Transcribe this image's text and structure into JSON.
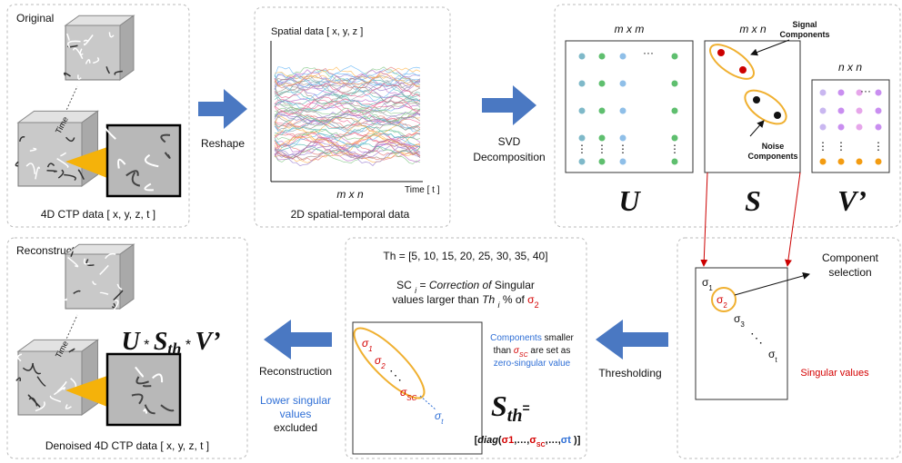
{
  "original": {
    "title": "Original",
    "time_label": "Time",
    "caption": "4D CTP data [ x, y, z, t ]"
  },
  "reshape_label": "Reshape",
  "spatial_temporal": {
    "y_axis_label": "Spatial data [ x, y, z ]",
    "x_axis_label": "Time [ t ]",
    "size": "m x n",
    "caption": "2D spatial-temporal data"
  },
  "svd_label": [
    "SVD",
    "Decomposition"
  ],
  "decomposition": {
    "u_size": "m x m",
    "s_size": "m x n",
    "v_size": "n x n",
    "signal_components": [
      "Signal",
      "Components"
    ],
    "noise_components": [
      "Noise",
      "Components"
    ],
    "u": "U",
    "s": "S",
    "v": "V’",
    "h_dots": "···",
    "v_dots": "⋮"
  },
  "selection": {
    "title": [
      "Component",
      "selection"
    ],
    "sigmas": [
      [
        "σ",
        "1"
      ],
      [
        "σ",
        "2"
      ],
      [
        "σ",
        "3"
      ],
      [
        "σ",
        "t"
      ]
    ],
    "dots": "⋱",
    "caption": "Singular values"
  },
  "thresholding_label": "Thresholding",
  "threshold": {
    "th_set": "Th = [5, 10, 15, 20, 25, 30, 35, 40]",
    "sc_line1": [
      "SC ",
      "i",
      " = ",
      "Correction of",
      " Singular"
    ],
    "sc_line2": [
      "values larger than ",
      "Th ",
      "i",
      " % of ",
      "σ",
      "2"
    ],
    "note": [
      "Components",
      " smaller",
      "than ",
      "σ",
      "SC",
      " are set as",
      "zero-singular value"
    ],
    "matrix_sigmas": [
      [
        "σ",
        "1"
      ],
      [
        "σ",
        "2"
      ],
      [
        "σ",
        "SC"
      ],
      [
        "σ",
        "t"
      ]
    ],
    "dots": "⋱",
    "s_th": [
      "S",
      "th",
      "="
    ],
    "diag": [
      "[",
      "diag",
      "(",
      "σ1",
      ",…,",
      "σ",
      "SC",
      ",…,",
      "σt",
      " )]"
    ]
  },
  "reconstruction_label": "Reconstruction",
  "excluded": [
    "Lower singular",
    "values",
    "excluded"
  ],
  "reconstructed": {
    "title": "Reconstructed",
    "time_label": "Time",
    "formula": [
      "U",
      " * ",
      "S",
      "th",
      " * ",
      "V’"
    ],
    "caption": "Denoised 4D CTP data [ x, y, z, t ]"
  }
}
